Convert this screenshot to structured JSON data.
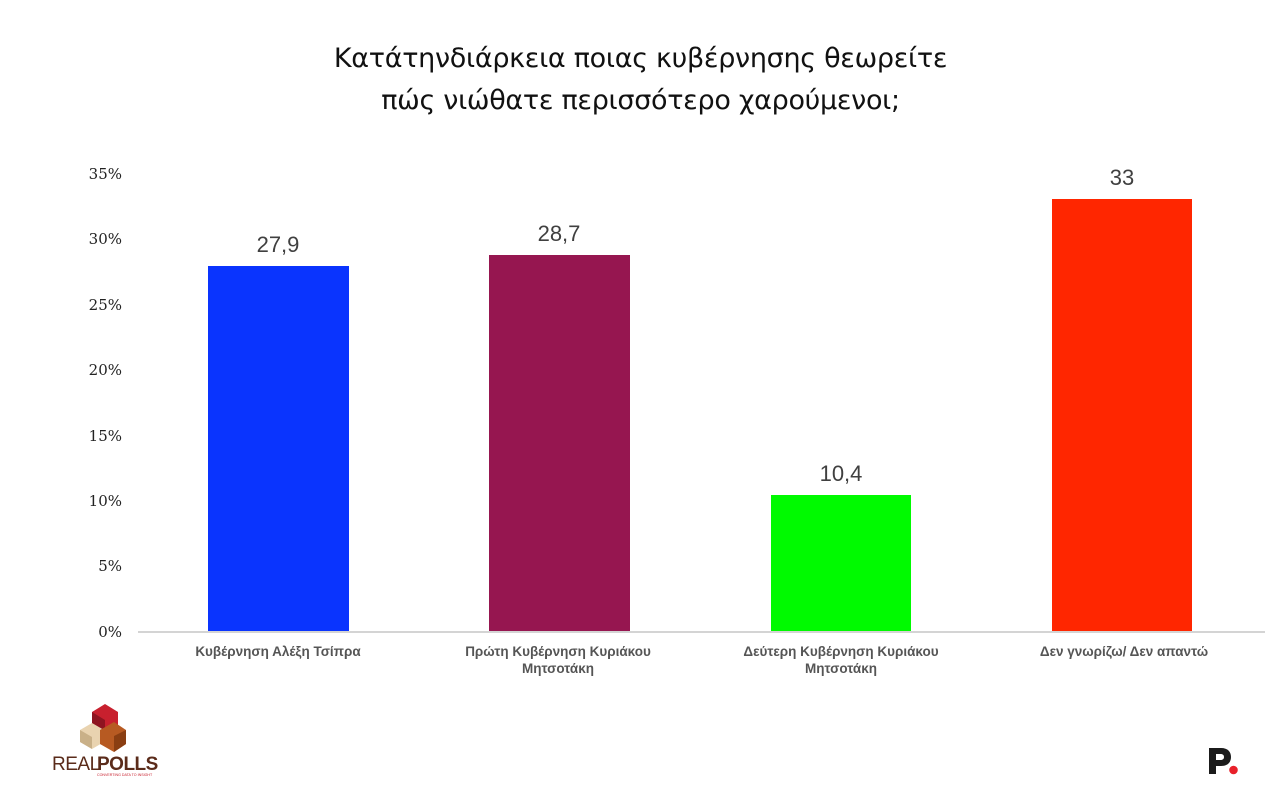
{
  "title": {
    "line1": "Κατάτηνδιάρκεια ποιας κυβέρνησης θεωρείτε",
    "line2": "πώς νιώθατε περισσότερο χαρούμενοι;"
  },
  "y_axis": {
    "ticks": [
      "35%",
      "30%",
      "25%",
      "20%",
      "15%",
      "10%",
      "5%",
      "0%"
    ]
  },
  "bars": [
    {
      "label_line1": "Κυβέρνηση  Αλέξη Τσίπρα",
      "label_line2": "",
      "value_label": "27,9",
      "value": 27.9,
      "color": "#0a34fe"
    },
    {
      "label_line1": "Πρώτη Κυβέρνηση  Κυριάκου",
      "label_line2": "Μητσοτάκη",
      "value_label": "28,7",
      "value": 28.7,
      "color": "#961650"
    },
    {
      "label_line1": "Δεύτερη Κυβέρνηση  Κυριάκου",
      "label_line2": "Μητσοτάκη",
      "value_label": "10,4",
      "value": 10.4,
      "color": "#00fa00"
    },
    {
      "label_line1": "Δεν γνωρίζω/ Δεν απαντώ",
      "label_line2": "",
      "value_label": "33",
      "value": 33,
      "color": "#ff2600"
    }
  ],
  "logos": {
    "realpolls": {
      "name": "REALPOLLS",
      "name_light": "REAL",
      "name_bold": "POLLS",
      "tagline": "CONVERTING DATA TO INSIGHT"
    },
    "publisher": {
      "letter": "P",
      "dot_color": "#e8202a"
    }
  },
  "chart_data": {
    "type": "bar",
    "title": "Κατάτηνδιάρκεια ποιας κυβέρνησης θεωρείτε πώς νιώθατε περισσότερο χαρούμενοι;",
    "categories": [
      "Κυβέρνηση  Αλέξη Τσίπρα",
      "Πρώτη Κυβέρνηση  Κυριάκου Μητσοτάκη",
      "Δεύτερη Κυβέρνηση  Κυριάκου Μητσοτάκη",
      "Δεν γνωρίζω/ Δεν απαντώ"
    ],
    "values": [
      27.9,
      28.7,
      10.4,
      33
    ],
    "data_labels": [
      "27,9",
      "28,7",
      "10,4",
      "33"
    ],
    "colors": [
      "#0a34fe",
      "#961650",
      "#00fa00",
      "#ff2600"
    ],
    "xlabel": "",
    "ylabel": "",
    "ylim": [
      0,
      35
    ],
    "ytick_labels": [
      "0%",
      "5%",
      "10%",
      "15%",
      "20%",
      "25%",
      "30%",
      "35%"
    ],
    "grid": false,
    "legend": "none"
  }
}
